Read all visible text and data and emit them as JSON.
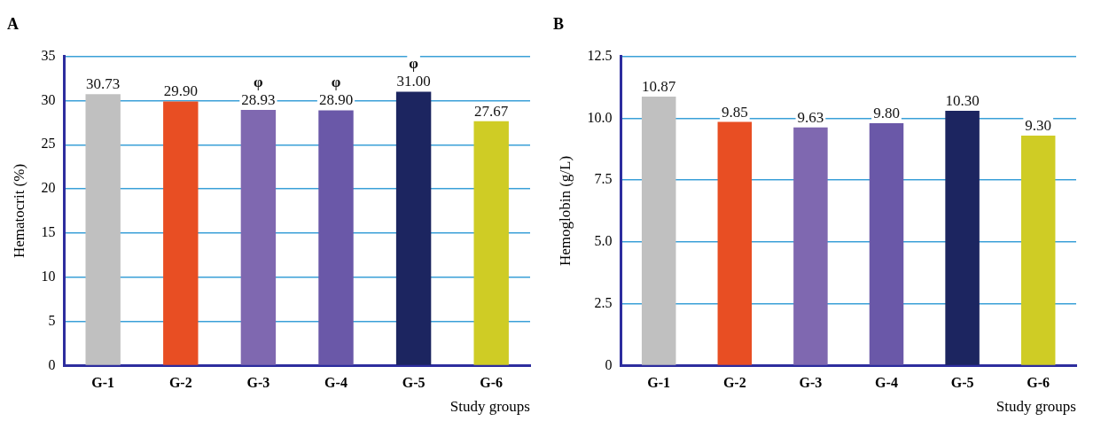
{
  "chart_data": [
    {
      "type": "bar",
      "title": "A",
      "xlabel": "Study groups",
      "ylabel": "Hematocrit (%)",
      "categories": [
        "G-1",
        "G-2",
        "G-3",
        "G-4",
        "G-5",
        "G-6"
      ],
      "values": [
        30.73,
        29.9,
        28.93,
        28.9,
        31.0,
        27.67
      ],
      "colors": [
        "#c0c0c0",
        "#e84e23",
        "#7f68b0",
        "#6a58a8",
        "#1c2560",
        "#cfcc25"
      ],
      "ylim": [
        0,
        35
      ],
      "yticks": [
        0,
        5,
        10,
        15,
        20,
        25,
        30,
        35
      ],
      "grid": "y",
      "value_labels": [
        "30.73",
        "29.90",
        "28.93",
        "28.90",
        "31.00",
        "27.67"
      ],
      "annotations": [
        {
          "text": "φ",
          "x": "G-3",
          "y": 28.93
        },
        {
          "text": "φ",
          "x": "G-4",
          "y": 28.9
        },
        {
          "text": "φ",
          "x": "G-5",
          "y": 31.0
        }
      ]
    },
    {
      "type": "bar",
      "title": "B",
      "xlabel": "Study groups",
      "ylabel": "Hemoglobin (g/L)",
      "categories": [
        "G-1",
        "G-2",
        "G-3",
        "G-4",
        "G-5",
        "G-6"
      ],
      "values": [
        10.87,
        9.85,
        9.63,
        9.8,
        10.3,
        9.3
      ],
      "colors": [
        "#c0c0c0",
        "#e84e23",
        "#7f68b0",
        "#6a58a8",
        "#1c2560",
        "#cfcc25"
      ],
      "ylim": [
        0,
        12.5
      ],
      "yticks": [
        0,
        {
          "value": 2.5,
          "label": "2.5"
        },
        {
          "value": 5,
          "label": "5.0"
        },
        {
          "value": 7.5,
          "label": "7.5"
        },
        {
          "value": 10,
          "label": "10.0"
        },
        {
          "value": 12.5,
          "label": "12.5"
        }
      ],
      "grid": "y",
      "value_labels": [
        "10.87",
        "9.85",
        "9.63",
        "9.80",
        "10.30",
        "9.30"
      ]
    }
  ]
}
